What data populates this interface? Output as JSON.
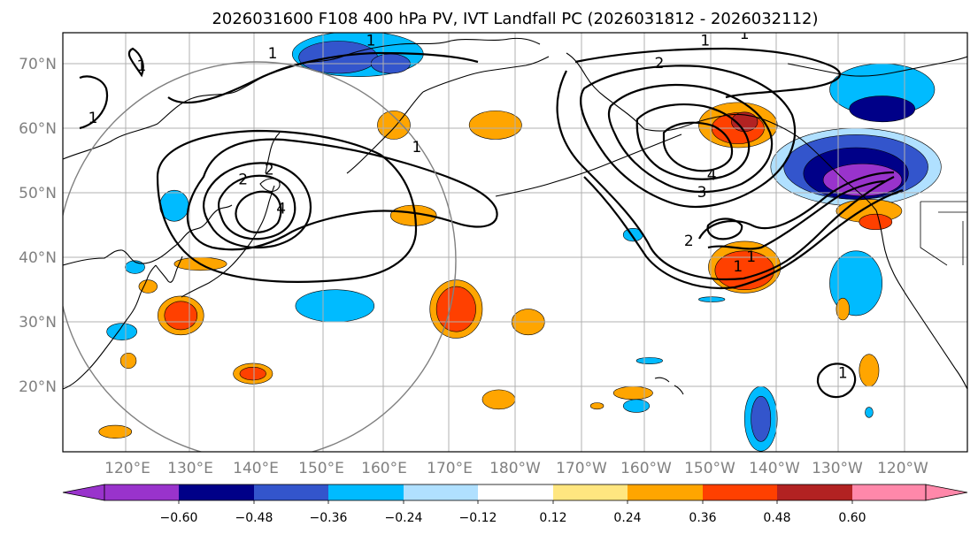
{
  "title": "2026031600 F108 400 hPa PV, IVT Landfall PC (2026031812 - 2026032112)",
  "map": {
    "lat_labels": [
      "70°N",
      "60°N",
      "50°N",
      "40°N",
      "30°N",
      "20°N"
    ],
    "lon_labels": [
      "120°E",
      "130°E",
      "140°E",
      "150°E",
      "160°E",
      "170°E",
      "180°W",
      "170°W",
      "160°W",
      "150°W",
      "140°W",
      "130°W",
      "120°W"
    ],
    "contour_labels": [
      {
        "text": "1",
        "lat": 69.6,
        "lon": 122
      },
      {
        "text": "1",
        "lat": 61.5,
        "lon": 114.6
      },
      {
        "text": "1",
        "lat": 71.5,
        "lon": 142
      },
      {
        "text": "1",
        "lat": 73.5,
        "lon": 157
      },
      {
        "text": "1",
        "lat": 57,
        "lon": 164
      },
      {
        "text": "2",
        "lat": 52,
        "lon": 137.5
      },
      {
        "text": "2",
        "lat": 53.5,
        "lon": 141.5
      },
      {
        "text": "4",
        "lat": 47.5,
        "lon": 143.3
      },
      {
        "text": "1",
        "lat": 73.5,
        "lon": -152
      },
      {
        "text": "1",
        "lat": 74.5,
        "lon": -146
      },
      {
        "text": "2",
        "lat": 70,
        "lon": -159
      },
      {
        "text": "4",
        "lat": 52.7,
        "lon": -151
      },
      {
        "text": "3",
        "lat": 50,
        "lon": -152.5
      },
      {
        "text": "2",
        "lat": 42.5,
        "lon": -154.5
      },
      {
        "text": "1",
        "lat": 38.5,
        "lon": -147
      },
      {
        "text": "1",
        "lat": 40,
        "lon": -145
      },
      {
        "text": "1",
        "lat": 22,
        "lon": -131
      }
    ]
  },
  "colorbar": {
    "tick_labels": [
      "−0.60",
      "−0.48",
      "−0.36",
      "−0.24",
      "−0.12",
      "0.12",
      "0.24",
      "0.36",
      "0.48",
      "0.60"
    ],
    "colors": [
      "#9933cc",
      "#000088",
      "#3355cc",
      "#00bbff",
      "#b0e0ff",
      "#ffffff",
      "#ffe680",
      "#ffa500",
      "#ff4000",
      "#b22222",
      "#ff88aa"
    ]
  },
  "fills": [
    {
      "lat": 71.5,
      "lon": 155,
      "rx": 10,
      "ry": 3.5,
      "level": -0.3
    },
    {
      "lat": 71,
      "lon": 152,
      "rx": 6,
      "ry": 2.5,
      "level": -0.4
    },
    {
      "lat": 70,
      "lon": 160,
      "rx": 3,
      "ry": 1.5,
      "level": -0.4
    },
    {
      "lat": 60.5,
      "lon": 160.5,
      "rx": 2.5,
      "ry": 2.2,
      "level": 0.3
    },
    {
      "lat": 60.5,
      "lon": 176,
      "rx": 4,
      "ry": 2.2,
      "level": 0.3
    },
    {
      "lat": 60.5,
      "lon": -147,
      "rx": 6,
      "ry": 3.5,
      "level": 0.3
    },
    {
      "lat": 60,
      "lon": -147,
      "rx": 4,
      "ry": 2.4,
      "level": 0.42
    },
    {
      "lat": 61,
      "lon": -146,
      "rx": 2,
      "ry": 1.5,
      "level": 0.5
    },
    {
      "lat": 66,
      "lon": -125,
      "rx": 8,
      "ry": 4,
      "level": -0.3
    },
    {
      "lat": 63,
      "lon": -125,
      "rx": 5,
      "ry": 2,
      "level": -0.5
    },
    {
      "lat": 54,
      "lon": -129,
      "rx": 13,
      "ry": 6,
      "level": -0.2
    },
    {
      "lat": 54,
      "lon": -129,
      "rx": 11,
      "ry": 5,
      "level": -0.4
    },
    {
      "lat": 53,
      "lon": -129,
      "rx": 8,
      "ry": 4,
      "level": -0.5
    },
    {
      "lat": 52,
      "lon": -128,
      "rx": 6,
      "ry": 2.5,
      "level": -0.62
    },
    {
      "lat": 47.2,
      "lon": -127,
      "rx": 5,
      "ry": 1.8,
      "level": 0.3
    },
    {
      "lat": 45.5,
      "lon": -126,
      "rx": 2.5,
      "ry": 1.2,
      "level": 0.4
    },
    {
      "lat": 36,
      "lon": -129,
      "rx": 4,
      "ry": 5,
      "level": -0.35
    },
    {
      "lat": 38.5,
      "lon": -146,
      "rx": 5.5,
      "ry": 4,
      "level": 0.32
    },
    {
      "lat": 38,
      "lon": -146,
      "rx": 4.5,
      "ry": 3,
      "level": 0.42
    },
    {
      "lat": 48,
      "lon": 127,
      "rx": 2.2,
      "ry": 2.4,
      "level": -0.3
    },
    {
      "lat": 46.5,
      "lon": 163.5,
      "rx": 3.5,
      "ry": 1.6,
      "level": 0.3
    },
    {
      "lat": 39,
      "lon": 131,
      "rx": 4,
      "ry": 1,
      "level": 0.3
    },
    {
      "lat": 38.5,
      "lon": 121,
      "rx": 1.5,
      "ry": 1,
      "level": -0.3
    },
    {
      "lat": 35.5,
      "lon": 123,
      "rx": 1.4,
      "ry": 1,
      "level": 0.3
    },
    {
      "lat": 31,
      "lon": 128,
      "rx": 3.5,
      "ry": 3,
      "level": 0.3
    },
    {
      "lat": 31,
      "lon": 128,
      "rx": 2.5,
      "ry": 2.2,
      "level": 0.42
    },
    {
      "lat": 28.5,
      "lon": 119,
      "rx": 2.3,
      "ry": 1.3,
      "level": -0.3
    },
    {
      "lat": 24,
      "lon": 120,
      "rx": 1.2,
      "ry": 1.2,
      "level": 0.3
    },
    {
      "lat": 32.5,
      "lon": 151.5,
      "rx": 6,
      "ry": 2.5,
      "level": -0.3
    },
    {
      "lat": 32,
      "lon": 170,
      "rx": 4,
      "ry": 4.5,
      "level": 0.3
    },
    {
      "lat": 32,
      "lon": 170,
      "rx": 3,
      "ry": 3.5,
      "level": 0.42
    },
    {
      "lat": 30,
      "lon": -179,
      "rx": 2.5,
      "ry": 2,
      "level": 0.3
    },
    {
      "lat": 22,
      "lon": 139,
      "rx": 3,
      "ry": 1.6,
      "level": 0.3
    },
    {
      "lat": 22,
      "lon": 139,
      "rx": 2,
      "ry": 1,
      "level": 0.42
    },
    {
      "lat": 18,
      "lon": 176.5,
      "rx": 2.5,
      "ry": 1.5,
      "level": 0.3
    },
    {
      "lat": 19,
      "lon": -163,
      "rx": 3,
      "ry": 1,
      "level": 0.3
    },
    {
      "lat": 24,
      "lon": -160.5,
      "rx": 2,
      "ry": 0.5,
      "level": -0.3
    },
    {
      "lat": 17,
      "lon": -162.5,
      "rx": 2,
      "ry": 1,
      "level": -0.3
    },
    {
      "lat": 15,
      "lon": -143.5,
      "rx": 2.5,
      "ry": 5,
      "level": -0.3
    },
    {
      "lat": 15,
      "lon": -143.5,
      "rx": 1.5,
      "ry": 3.5,
      "level": -0.4
    },
    {
      "lat": 32,
      "lon": -131,
      "rx": 1,
      "ry": 1.7,
      "level": 0.3
    },
    {
      "lat": 22.5,
      "lon": -127,
      "rx": 1.5,
      "ry": 2.5,
      "level": 0.3
    },
    {
      "lat": 13,
      "lon": 118,
      "rx": 2.5,
      "ry": 1,
      "level": 0.3
    },
    {
      "lat": 17,
      "lon": -168.5,
      "rx": 1,
      "ry": 0.5,
      "level": 0.3
    },
    {
      "lat": 43.5,
      "lon": -163,
      "rx": 1.5,
      "ry": 1,
      "level": -0.3
    },
    {
      "lat": 33.5,
      "lon": -151,
      "rx": 2,
      "ry": 0.4,
      "level": -0.3
    },
    {
      "lat": 16,
      "lon": -127,
      "rx": 0.6,
      "ry": 0.8,
      "level": -0.3
    }
  ]
}
